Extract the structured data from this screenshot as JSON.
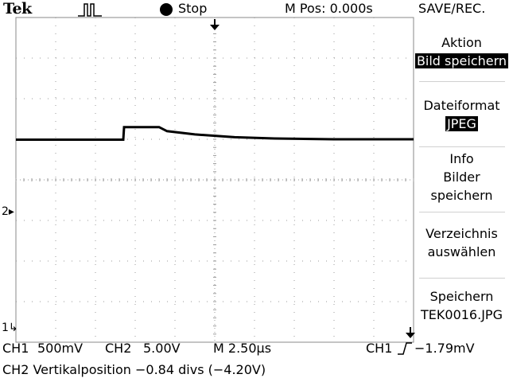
{
  "header": {
    "brand": "Tek",
    "trigger_icon": "pulse-trigger-icon",
    "run_state": "Stop",
    "horizontal_position": "M Pos: 0.000s",
    "menu_title": "SAVE/REC."
  },
  "side_menu": {
    "items": [
      {
        "label_lines": [
          "Aktion"
        ],
        "value": "Bild speichern"
      },
      {
        "label_lines": [
          "Dateiformat"
        ],
        "value": "JPEG"
      },
      {
        "label_lines": [
          "Info",
          "Bilder",
          "speichern"
        ]
      },
      {
        "label_lines": [
          "Verzeichnis",
          "auswählen"
        ]
      },
      {
        "label_lines": [
          "Speichern",
          "TEK0016.JPG"
        ]
      }
    ]
  },
  "markers": {
    "ch2": "2",
    "ch1": "1"
  },
  "status_bar": {
    "ch1_label": "CH1",
    "ch1_scale": "500mV",
    "ch2_label": "CH2",
    "ch2_scale": "5.00V",
    "timebase": "M 2.50µs",
    "trigger_source": "CH1",
    "trigger_level": "−1.79mV",
    "message": "CH2 Vertikalposition −0.84 divs (−4.20V)"
  },
  "graticule": {
    "divisions_x": 10,
    "divisions_y": 8
  },
  "waveform": {
    "channel": "CH2",
    "unit": "divisions",
    "points": [
      [
        0.0,
        4.99
      ],
      [
        2.7,
        4.99
      ],
      [
        2.72,
        5.3
      ],
      [
        3.6,
        5.3
      ],
      [
        3.8,
        5.2
      ],
      [
        4.5,
        5.12
      ],
      [
        5.5,
        5.05
      ],
      [
        6.5,
        5.02
      ],
      [
        8.0,
        5.0
      ],
      [
        10.0,
        5.0
      ]
    ]
  },
  "colors": {
    "trace": "#000000",
    "grid_dots": "#9a9a9a",
    "separator": "#d0d0d0"
  }
}
